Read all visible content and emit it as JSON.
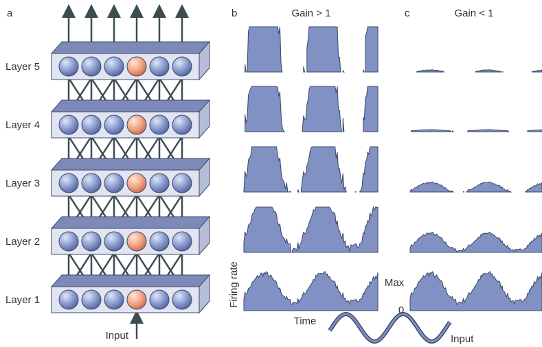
{
  "panels": {
    "a": {
      "label": "a",
      "layers": [
        "Layer 5",
        "Layer 4",
        "Layer 3",
        "Layer 2",
        "Layer 1"
      ],
      "input": "Input"
    },
    "b": {
      "label": "b",
      "title": "Gain > 1"
    },
    "c": {
      "label": "c",
      "title": "Gain < 1"
    }
  },
  "axes": {
    "y_label": "Firing rate",
    "max": "Max",
    "zero": "0",
    "x_label": "Time",
    "input": "Input"
  }
}
